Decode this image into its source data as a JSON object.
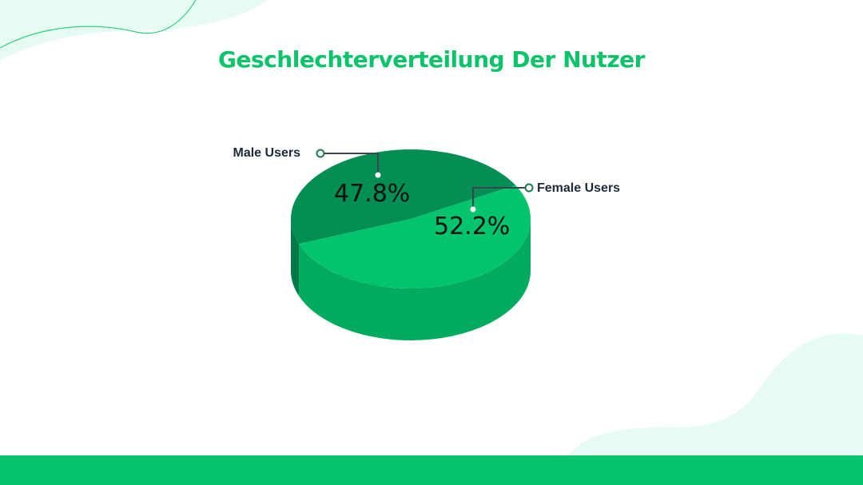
{
  "page": {
    "title": "Geschlechterverteilung Der Nutzer"
  },
  "colors": {
    "accent": "#05c46b",
    "title": "#0bc46a",
    "male_top": "#038e53",
    "male_side": "#027a45",
    "female_top": "#02c46d",
    "female_side": "#02ab5e",
    "decor": "#e6fbf1",
    "label_text": "#1e2a3a"
  },
  "chart_data": {
    "type": "pie",
    "style": "3d",
    "slices": [
      {
        "label": "Male Users",
        "value": 47.8,
        "display": "47.8%"
      },
      {
        "label": "Female Users",
        "value": 52.2,
        "display": "52.2%"
      }
    ]
  }
}
